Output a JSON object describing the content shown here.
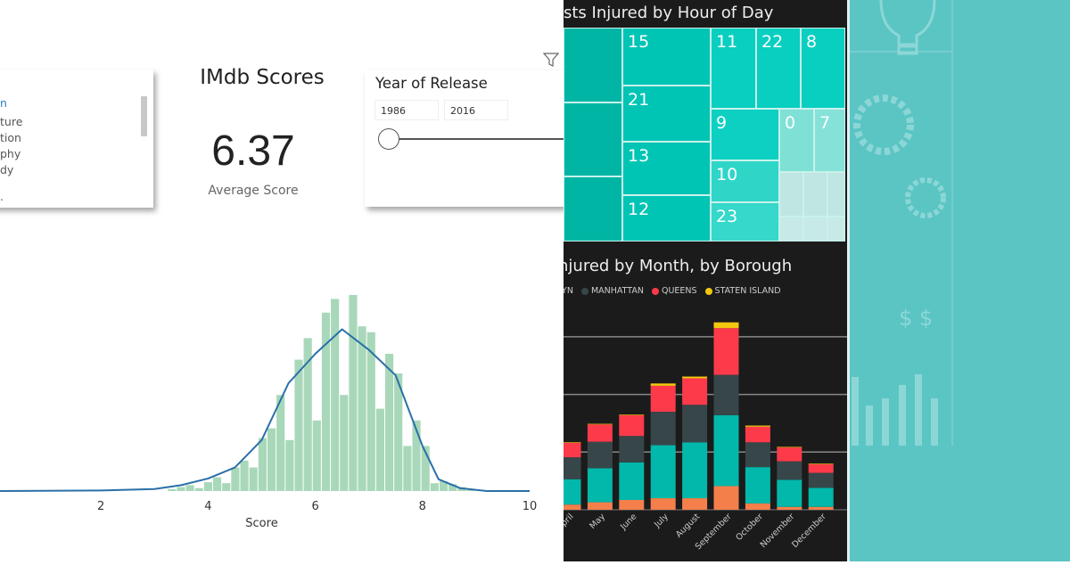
{
  "left_panel": {
    "genre_list": [
      "n",
      "ture",
      "tion",
      "phy",
      "dy",
      "."
    ],
    "title": "IMdb Scores",
    "average_value": "6.37",
    "average_label": "Average Score",
    "year_slicer": {
      "title": "Year of Release",
      "from": "1986",
      "to": "2016",
      "slider_position": 0
    },
    "icons": [
      "filter-icon"
    ]
  },
  "chart_data": [
    {
      "type": "bar",
      "subtype": "histogram-with-kde",
      "xlabel": "Score",
      "xticks": [
        "2",
        "4",
        "6",
        "8",
        "10"
      ],
      "xlim": [
        0,
        10
      ],
      "bin_start": 3.24,
      "bin_width": 0.169,
      "relative_heights": [
        1,
        2,
        3,
        1.5,
        4.5,
        7,
        4,
        12,
        15.5,
        12,
        27,
        32,
        49,
        26,
        67,
        78,
        36,
        91,
        98,
        49,
        100,
        84,
        81,
        42,
        70,
        60,
        23,
        36,
        23,
        4,
        5,
        3.5,
        2,
        0.6
      ],
      "kde": {
        "x": [
          0,
          2,
          3,
          3.5,
          4,
          4.5,
          5,
          5.5,
          6,
          6.5,
          7,
          7.5,
          8,
          8.3,
          8.7,
          9.2,
          10
        ],
        "y": [
          0,
          0.3,
          1,
          3,
          6.4,
          12,
          26,
          55,
          70,
          82.5,
          72,
          59,
          23,
          6,
          1.5,
          0,
          0
        ]
      },
      "colors": {
        "bars": "#a8d8b9",
        "kde": "#2a6fa8"
      }
    },
    {
      "type": "treemap",
      "title": "sts Injured by Hour of Day",
      "cells": [
        "15",
        "21",
        "13",
        "12",
        "11",
        "22",
        "8",
        "9",
        "10",
        "23",
        "0",
        "7"
      ],
      "color": "#00c4b4"
    },
    {
      "type": "bar",
      "subtype": "stacked",
      "title": "njured by Month, by Borough",
      "legend": [
        "LYN",
        "MANHATTAN",
        "QUEENS",
        "STATEN ISLAND"
      ],
      "categories": [
        "April",
        "May",
        "June",
        "July",
        "August",
        "September",
        "October",
        "November",
        "December"
      ],
      "series": [
        {
          "color": "#f47f4a",
          "values": [
            9,
            13,
            17,
            20,
            20,
            41,
            11,
            5,
            5
          ]
        },
        {
          "color": "#01b8aa",
          "values": [
            44,
            59,
            65,
            92,
            97,
            123,
            63,
            47,
            33
          ]
        },
        {
          "name": "MANHATTAN",
          "color": "#374649",
          "values": [
            38,
            46,
            46,
            58,
            65,
            70,
            43,
            32,
            26
          ]
        },
        {
          "name": "QUEENS",
          "color": "#fd3a4a",
          "values": [
            25,
            30,
            36,
            45,
            46,
            81,
            27,
            24,
            15
          ]
        },
        {
          "name": "STATEN ISLAND",
          "color": "#f2c80f",
          "values": [
            1,
            1,
            1,
            4,
            3,
            10,
            2,
            1,
            1
          ]
        }
      ],
      "gridlines": [
        100,
        200,
        300
      ],
      "grid": true
    }
  ],
  "right_panel": {
    "color": "#5bc5c4",
    "icons": [
      "lightbulb-icon",
      "gear-icon",
      "gear-icon",
      "dollar-icon",
      "bar-chart-icon"
    ]
  }
}
